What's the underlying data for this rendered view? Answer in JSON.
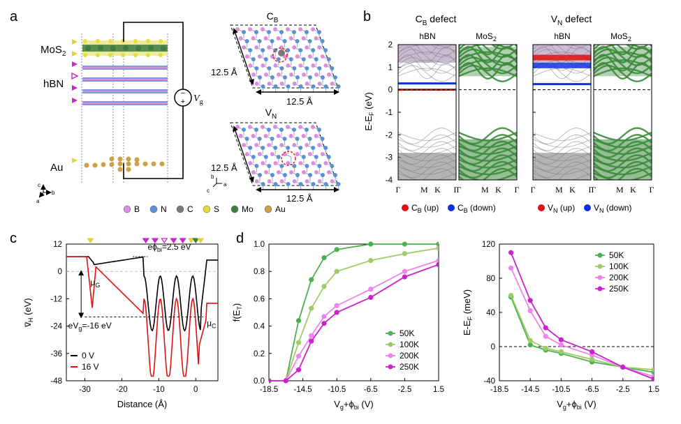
{
  "panels": {
    "a": {
      "label": "a",
      "layers": [
        "MoS",
        "hBN",
        "Au"
      ],
      "mos2_sub": "2",
      "gate_label": "V",
      "gate_sub": "g",
      "plus": "+",
      "minus": "−",
      "cell_size": "12.5 Å",
      "defect_cb": "C",
      "defect_cb_sub": "B",
      "defect_vn": "V",
      "defect_vn_sub": "N",
      "axes_c": "c",
      "axes_a": "a",
      "axes_b": "b",
      "legend": [
        {
          "label": "B",
          "color": "#d98ee0"
        },
        {
          "label": "N",
          "color": "#5b8fd6"
        },
        {
          "label": "C",
          "color": "#7a7a7a"
        },
        {
          "label": "S",
          "color": "#e6dc3c"
        },
        {
          "label": "Mo",
          "color": "#3f7d3f"
        },
        {
          "label": "Au",
          "color": "#c9a24a"
        }
      ]
    },
    "b": {
      "label": "b",
      "title_cb": "C",
      "title_cb_sub": "B",
      "title_vn": "V",
      "title_vn_sub": "N",
      "defect_word": " defect",
      "sub_hbn": "hBN",
      "sub_mos": "MoS",
      "sub_mos_sub": "2",
      "ylabel": "E-E",
      "ylabel_sub": "F",
      "ylabel_tail": " (eV)",
      "yticks": [
        "2",
        "1",
        "0",
        "-1",
        "-2",
        "-3",
        "-4"
      ],
      "kpoints": [
        "Γ",
        "M",
        "K",
        "Γ"
      ],
      "legend_cb": [
        {
          "label": "C",
          "sub": "B",
          "tail": " (up)",
          "color": "#e01010"
        },
        {
          "label": "C",
          "sub": "B",
          "tail": " (down)",
          "color": "#1030e0"
        }
      ],
      "legend_vn": [
        {
          "label": "V",
          "sub": "N",
          "tail": " (up)",
          "color": "#e01010"
        },
        {
          "label": "V",
          "sub": "N",
          "tail": " (down)",
          "color": "#1030e0"
        }
      ]
    },
    "c": {
      "label": "c",
      "ylabel": "v̅",
      "ylabel_sub": "H",
      "ylabel_tail": " (eV)",
      "xlabel": "Distance (Å)",
      "yticks": [
        "12",
        "0",
        "-12",
        "-24",
        "-36",
        "-48"
      ],
      "xticks": [
        "-30",
        "-20",
        "-10",
        "0"
      ],
      "ann_phi": "eϕ",
      "ann_phi_sub": "bi",
      "ann_phi_tail": "=2.5 eV",
      "ann_mug": "μ",
      "ann_mug_sub": "G",
      "ann_muc": "μ",
      "ann_muc_sub": "C",
      "ann_evg": "eV",
      "ann_evg_sub": "g",
      "ann_evg_tail": "=-16 eV",
      "legend": [
        {
          "label": "0 V",
          "color": "#000000"
        },
        {
          "label": "16 V",
          "color": "#e01010"
        }
      ]
    },
    "d": {
      "label": "d",
      "left_ylabel": "f(E",
      "left_ylabel_sub": "T",
      "left_ylabel_tail": ")",
      "right_ylabel": "E-E",
      "right_ylabel_sub": "F",
      "right_ylabel_tail": " (meV)",
      "xlabel": "V",
      "xlabel_sub": "g",
      "xlabel_mid": "+ϕ",
      "xlabel_sub2": "bi",
      "xlabel_tail": " (V)",
      "xticks": [
        "-18.5",
        "-14.5",
        "-10.5",
        "-6.5",
        "-2.5",
        "1.5"
      ],
      "left_yticks": [
        "0.0",
        "0.2",
        "0.4",
        "0.6",
        "0.8",
        "1.0"
      ],
      "right_yticks": [
        "120",
        "80",
        "40",
        "0",
        "-40"
      ]
    }
  },
  "chart_data": [
    {
      "type": "line",
      "title": "f(E_T) vs Vg+phi_bi",
      "xlabel": "Vg+phi_bi (V)",
      "ylabel": "f(E_T)",
      "xlim": [
        -18.5,
        1.5
      ],
      "ylim": [
        0,
        1.0
      ],
      "x": [
        -18.5,
        -16.5,
        -15.0,
        -13.5,
        -12.0,
        -10.5,
        -6.5,
        -2.5,
        1.5
      ],
      "series": [
        {
          "name": "50K",
          "color": "#4caf50",
          "values": [
            0.0,
            0.0,
            0.44,
            0.74,
            0.9,
            0.96,
            1.0,
            1.0,
            1.0
          ]
        },
        {
          "name": "100K",
          "color": "#9ccc65",
          "values": [
            0.0,
            0.0,
            0.28,
            0.53,
            0.69,
            0.8,
            0.88,
            0.93,
            0.97
          ]
        },
        {
          "name": "200K",
          "color": "#ee82ee",
          "values": [
            0.0,
            0.0,
            0.18,
            0.33,
            0.47,
            0.55,
            0.67,
            0.8,
            0.88
          ]
        },
        {
          "name": "250K",
          "color": "#cc22cc",
          "values": [
            0.0,
            0.0,
            0.08,
            0.29,
            0.42,
            0.5,
            0.61,
            0.76,
            0.85
          ]
        }
      ]
    },
    {
      "type": "line",
      "title": "E-E_F vs Vg+phi_bi",
      "xlabel": "Vg+phi_bi (V)",
      "ylabel": "E-E_F (meV)",
      "xlim": [
        -18.5,
        1.5
      ],
      "ylim": [
        -40,
        120
      ],
      "x": [
        -17.0,
        -14.5,
        -12.5,
        -10.5,
        -6.5,
        -2.5,
        1.5
      ],
      "series": [
        {
          "name": "50K",
          "color": "#4caf50",
          "values": [
            58,
            2,
            -4,
            -8,
            -18,
            -24,
            -30
          ]
        },
        {
          "name": "100K",
          "color": "#9ccc65",
          "values": [
            60,
            7,
            -2,
            -6,
            -15,
            -24,
            -27
          ]
        },
        {
          "name": "200K",
          "color": "#ee82ee",
          "values": [
            92,
            42,
            12,
            2,
            -10,
            -24,
            -35
          ]
        },
        {
          "name": "250K",
          "color": "#cc22cc",
          "values": [
            110,
            54,
            22,
            8,
            -6,
            -24,
            -38
          ]
        }
      ]
    }
  ]
}
